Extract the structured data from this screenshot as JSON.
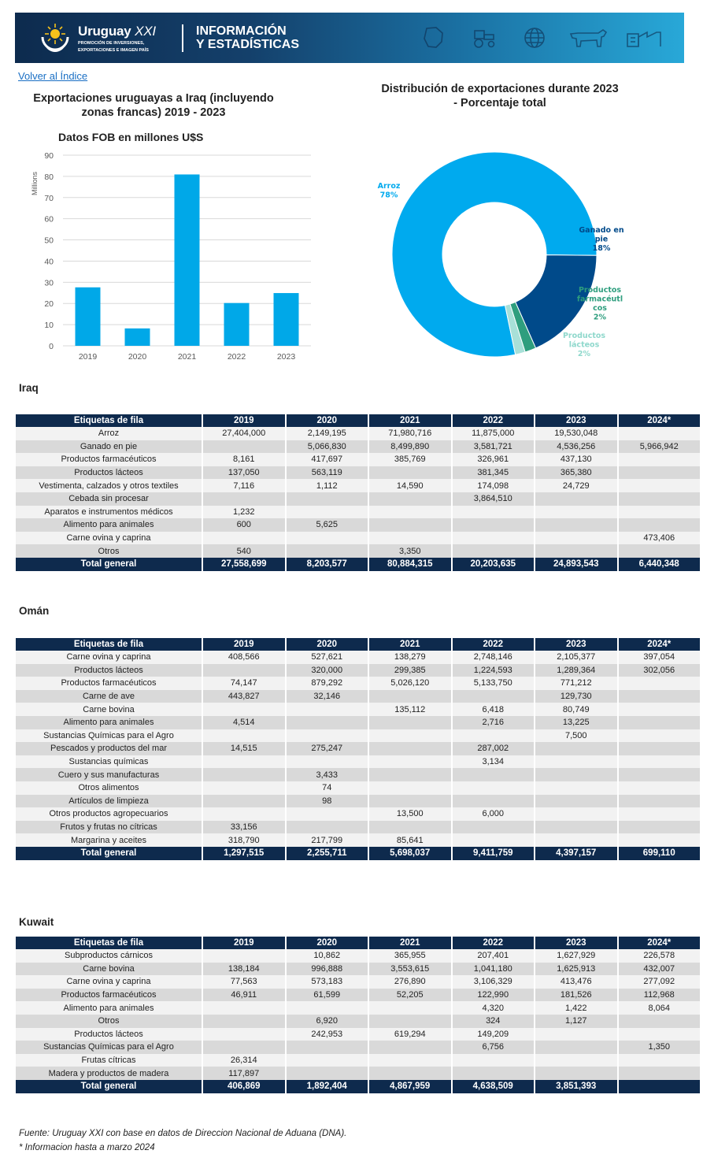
{
  "header": {
    "brand": "Uruguay",
    "brand_suffix": "XXI",
    "brand_sub_1": "PROMOCIÓN DE INVERSIONES,",
    "brand_sub_2": "EXPORTACIONES E IMAGEN PAÍS",
    "title_1": "INFORMACIÓN",
    "title_2": "Y ESTADÍSTICAS",
    "icons": [
      "map-icon",
      "tractor-icon",
      "globe-icon",
      "cow-icon",
      "industry-icon"
    ]
  },
  "back_link": "Volver al Índice",
  "colors": {
    "navy": "#0e2a4d",
    "bar": "#00a8e8",
    "pie_arroz": "#00aaee",
    "pie_ganado": "#004a8a",
    "pie_farma": "#2e9e7e",
    "pie_lacteos": "#a8e0d8"
  },
  "bar_chart_title": "Exportaciones uruguayas a Iraq (incluyendo zonas francas) 2019 - 2023",
  "bar_chart_subtitle": "Datos FOB en millones U$S",
  "pie_chart_title": "Distribución de exportaciones durante 2023 - Porcentaje total",
  "chart_data": [
    {
      "type": "bar",
      "title": "Exportaciones uruguayas a Iraq (incluyendo zonas francas) 2019 - 2023",
      "subtitle": "Datos FOB en millones U$S",
      "categories": [
        "2019",
        "2020",
        "2021",
        "2022",
        "2023"
      ],
      "values": [
        27.6,
        8.2,
        80.9,
        20.2,
        24.9
      ],
      "ylabel": "Millions",
      "ylim": [
        0,
        90
      ],
      "yticks": [
        0,
        10,
        20,
        30,
        40,
        50,
        60,
        70,
        80,
        90
      ],
      "grid": true
    },
    {
      "type": "pie",
      "title": "Distribución de exportaciones durante 2023 - Porcentaje total",
      "labels": [
        "Arroz",
        "Ganado en pie",
        "Productos farmacéutlcos",
        "Productos lácteos"
      ],
      "label_display": [
        "Arroz",
        "Ganado en pie",
        "Productos farmacéutl cos",
        "Productos lácteos"
      ],
      "percent_labels": [
        "78%",
        "18%",
        "2%",
        "2%"
      ],
      "values": [
        78.45,
        18.22,
        1.76,
        1.57
      ],
      "hole": true
    }
  ],
  "tables": [
    {
      "title": "Iraq",
      "headers": [
        "Etiquetas de fila",
        "2019",
        "2020",
        "2021",
        "2022",
        "2023",
        "2024*"
      ],
      "rows": [
        [
          "Arroz",
          "27,404,000",
          "2,149,195",
          "71,980,716",
          "11,875,000",
          "19,530,048",
          ""
        ],
        [
          "Ganado en pie",
          "",
          "5,066,830",
          "8,499,890",
          "3,581,721",
          "4,536,256",
          "5,966,942"
        ],
        [
          "Productos farmacéuticos",
          "8,161",
          "417,697",
          "385,769",
          "326,961",
          "437,130",
          ""
        ],
        [
          "Productos lácteos",
          "137,050",
          "563,119",
          "",
          "381,345",
          "365,380",
          ""
        ],
        [
          "Vestimenta, calzados y otros textiles",
          "7,116",
          "1,112",
          "14,590",
          "174,098",
          "24,729",
          ""
        ],
        [
          "Cebada sin procesar",
          "",
          "",
          "",
          "3,864,510",
          "",
          ""
        ],
        [
          "Aparatos e instrumentos médicos",
          "1,232",
          "",
          "",
          "",
          "",
          ""
        ],
        [
          "Alimento para animales",
          "600",
          "5,625",
          "",
          "",
          "",
          ""
        ],
        [
          "Carne ovina y caprina",
          "",
          "",
          "",
          "",
          "",
          "473,406"
        ],
        [
          "Otros",
          "540",
          "",
          "3,350",
          "",
          "",
          ""
        ]
      ],
      "total": [
        "Total general",
        "27,558,699",
        "8,203,577",
        "80,884,315",
        "20,203,635",
        "24,893,543",
        "6,440,348"
      ]
    },
    {
      "title": "Omán",
      "headers": [
        "Etiquetas de fila",
        "2019",
        "2020",
        "2021",
        "2022",
        "2023",
        "2024*"
      ],
      "rows": [
        [
          "Carne ovina y caprina",
          "408,566",
          "527,621",
          "138,279",
          "2,748,146",
          "2,105,377",
          "397,054"
        ],
        [
          "Productos lácteos",
          "",
          "320,000",
          "299,385",
          "1,224,593",
          "1,289,364",
          "302,056"
        ],
        [
          "Productos farmacéuticos",
          "74,147",
          "879,292",
          "5,026,120",
          "5,133,750",
          "771,212",
          ""
        ],
        [
          "Carne de ave",
          "443,827",
          "32,146",
          "",
          "",
          "129,730",
          ""
        ],
        [
          "Carne bovina",
          "",
          "",
          "135,112",
          "6,418",
          "80,749",
          ""
        ],
        [
          "Alimento para animales",
          "4,514",
          "",
          "",
          "2,716",
          "13,225",
          ""
        ],
        [
          "Sustancias Químicas para el Agro",
          "",
          "",
          "",
          "",
          "7,500",
          ""
        ],
        [
          "Pescados y productos del mar",
          "14,515",
          "275,247",
          "",
          "287,002",
          "",
          ""
        ],
        [
          "Sustancias químicas",
          "",
          "",
          "",
          "3,134",
          "",
          ""
        ],
        [
          "Cuero y sus manufacturas",
          "",
          "3,433",
          "",
          "",
          "",
          ""
        ],
        [
          "Otros alimentos",
          "",
          "74",
          "",
          "",
          "",
          ""
        ],
        [
          "Artículos de limpieza",
          "",
          "98",
          "",
          "",
          "",
          ""
        ],
        [
          "Otros productos agropecuarios",
          "",
          "",
          "13,500",
          "6,000",
          "",
          ""
        ],
        [
          "Frutos y frutas no cítricas",
          "33,156",
          "",
          "",
          "",
          "",
          ""
        ],
        [
          "Margarina y aceites",
          "318,790",
          "217,799",
          "85,641",
          "",
          "",
          ""
        ]
      ],
      "total": [
        "Total general",
        "1,297,515",
        "2,255,711",
        "5,698,037",
        "9,411,759",
        "4,397,157",
        "699,110"
      ]
    },
    {
      "title": "Kuwait",
      "headers": [
        "Etiquetas de fila",
        "2019",
        "2020",
        "2021",
        "2022",
        "2023",
        "2024*"
      ],
      "rows": [
        [
          "Subproductos cárnicos",
          "",
          "10,862",
          "365,955",
          "207,401",
          "1,627,929",
          "226,578"
        ],
        [
          "Carne bovina",
          "138,184",
          "996,888",
          "3,553,615",
          "1,041,180",
          "1,625,913",
          "432,007"
        ],
        [
          "Carne ovina y caprina",
          "77,563",
          "573,183",
          "276,890",
          "3,106,329",
          "413,476",
          "277,092"
        ],
        [
          "Productos farmacéuticos",
          "46,911",
          "61,599",
          "52,205",
          "122,990",
          "181,526",
          "112,968"
        ],
        [
          "Alimento para animales",
          "",
          "",
          "",
          "4,320",
          "1,422",
          "8,064"
        ],
        [
          "Otros",
          "",
          "6,920",
          "",
          "324",
          "1,127",
          ""
        ],
        [
          "Productos lácteos",
          "",
          "242,953",
          "619,294",
          "149,209",
          "",
          ""
        ],
        [
          "Sustancias Químicas para el Agro",
          "",
          "",
          "",
          "6,756",
          "",
          "1,350"
        ],
        [
          "Frutas cítricas",
          "26,314",
          "",
          "",
          "",
          "",
          ""
        ],
        [
          "Madera y productos de madera",
          "117,897",
          "",
          "",
          "",
          "",
          ""
        ]
      ],
      "total": [
        "Total general",
        "406,869",
        "1,892,404",
        "4,867,959",
        "4,638,509",
        "3,851,393",
        ""
      ]
    }
  ],
  "footer": {
    "source": "Fuente: Uruguay XXI con base en datos de Direccion Nacional de Aduana (DNA).",
    "note": "* Informacion hasta a marzo 2024"
  }
}
